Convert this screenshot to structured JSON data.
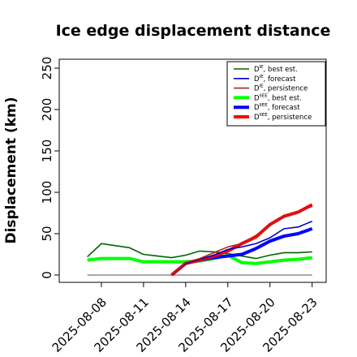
{
  "chart_data": {
    "type": "line",
    "title": "Ice edge displacement distance",
    "xlabel": "",
    "ylabel": "Displacement (km)",
    "ylim": [
      0,
      260
    ],
    "xlim": [
      "2025-08-05",
      "2025-08-24"
    ],
    "x_tick_labels": [
      "2025-08-08",
      "2025-08-11",
      "2025-08-14",
      "2025-08-17",
      "2025-08-20",
      "2025-08-23"
    ],
    "highlighted_x_tick": "2025-08-14",
    "highlight_color": "#228b22",
    "y_tick_labels": [
      "0",
      "50",
      "100",
      "150",
      "200",
      "250"
    ],
    "grid": false,
    "legend_position": "top-right",
    "baseline": {
      "x": [
        "2025-08-07",
        "2025-08-23"
      ],
      "y": [
        0,
        0
      ],
      "color": "#555555"
    },
    "series": [
      {
        "name": "D^IE, best est.",
        "legend_base": "D",
        "legend_sup": "IE",
        "legend_rest": ", best est.",
        "color": "#006400",
        "width": 1.6,
        "x": [
          "2025-08-07",
          "2025-08-08",
          "2025-08-10",
          "2025-08-11",
          "2025-08-12",
          "2025-08-13",
          "2025-08-14",
          "2025-08-15",
          "2025-08-16",
          "2025-08-17",
          "2025-08-18",
          "2025-08-19",
          "2025-08-20",
          "2025-08-21",
          "2025-08-22",
          "2025-08-23"
        ],
        "y": [
          22,
          38,
          33,
          25,
          23,
          21,
          24,
          29,
          28,
          26,
          23,
          20,
          24,
          27,
          27,
          28
        ]
      },
      {
        "name": "D^IE, forecast",
        "legend_base": "D",
        "legend_sup": "IE",
        "legend_rest": ", forecast",
        "color": "#0000cd",
        "width": 1.6,
        "x": [
          "2025-08-13",
          "2025-08-14",
          "2025-08-15",
          "2025-08-16",
          "2025-08-17",
          "2025-08-18",
          "2025-08-19",
          "2025-08-20",
          "2025-08-21",
          "2025-08-22",
          "2025-08-23"
        ],
        "y": [
          0,
          14,
          19,
          24,
          31,
          34,
          38,
          45,
          56,
          58,
          65
        ]
      },
      {
        "name": "D^IE, persistence",
        "legend_base": "D",
        "legend_sup": "IE",
        "legend_rest": ", persistence",
        "color": "#b22222",
        "width": 1.6,
        "x": [
          "2025-08-13",
          "2025-08-14",
          "2025-08-15",
          "2025-08-16",
          "2025-08-17",
          "2025-08-18",
          "2025-08-19",
          "2025-08-20",
          "2025-08-21",
          "2025-08-22",
          "2025-08-23"
        ],
        "y": [
          0,
          15,
          20,
          27,
          34,
          38,
          48,
          60,
          70,
          76,
          83
        ]
      },
      {
        "name": "D^IIEE, best est.",
        "legend_base": "D",
        "legend_sup": "IIEE",
        "legend_rest": ", best est.",
        "color": "#00ff00",
        "width": 4,
        "x": [
          "2025-08-07",
          "2025-08-08",
          "2025-08-09",
          "2025-08-10",
          "2025-08-11",
          "2025-08-12",
          "2025-08-13",
          "2025-08-14",
          "2025-08-15",
          "2025-08-16",
          "2025-08-17",
          "2025-08-18",
          "2025-08-19",
          "2025-08-20",
          "2025-08-21",
          "2025-08-22",
          "2025-08-23"
        ],
        "y": [
          18,
          20,
          20,
          20,
          16,
          16,
          16,
          16,
          17,
          20,
          24,
          15,
          14,
          16,
          18,
          19,
          21
        ]
      },
      {
        "name": "D^IIEE, forecast",
        "legend_base": "D",
        "legend_sup": "IIEE",
        "legend_rest": ", forecast",
        "color": "#0000ff",
        "width": 4,
        "x": [
          "2025-08-13",
          "2025-08-14",
          "2025-08-15",
          "2025-08-16",
          "2025-08-17",
          "2025-08-18",
          "2025-08-19",
          "2025-08-20",
          "2025-08-21",
          "2025-08-22",
          "2025-08-23"
        ],
        "y": [
          0,
          14,
          18,
          21,
          23,
          25,
          32,
          41,
          47,
          50,
          56
        ]
      },
      {
        "name": "D^IIEE, persistence",
        "legend_base": "D",
        "legend_sup": "IIEE",
        "legend_rest": ", persistence",
        "color": "#ff0000",
        "width": 4,
        "x": [
          "2025-08-13",
          "2025-08-14",
          "2025-08-15",
          "2025-08-16",
          "2025-08-17",
          "2025-08-18",
          "2025-08-19",
          "2025-08-20",
          "2025-08-21",
          "2025-08-22",
          "2025-08-23"
        ],
        "y": [
          0,
          14,
          18,
          23,
          29,
          38,
          46,
          61,
          71,
          76,
          85
        ]
      }
    ]
  }
}
